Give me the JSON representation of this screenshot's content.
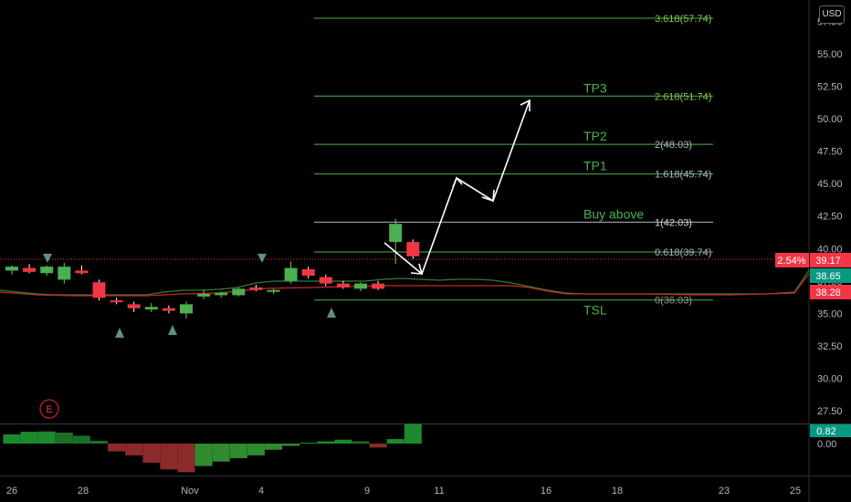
{
  "currency_button": "USD",
  "earnings_marker": "E",
  "price_badges": {
    "change_pct": "2.54%",
    "last_price": "39.17",
    "line_green": "38.65",
    "line_red": "38.28",
    "osc_value": "0.82"
  },
  "colors": {
    "up": "#4caf50",
    "down": "#f23645",
    "fib": "#4caf50",
    "fib_white": "#b2b5be",
    "background": "#000000",
    "badge_red": "#f23645",
    "badge_green": "#089981"
  },
  "chart_data": [
    {
      "type": "candlestick",
      "x_ticks": [
        "26",
        "28",
        "Nov",
        "4",
        "9",
        "11",
        "16",
        "18",
        "23",
        "25"
      ],
      "y_ticks": [
        "27.50",
        "30.00",
        "32.50",
        "35.00",
        "37.50",
        "40.00",
        "42.50",
        "45.00",
        "47.50",
        "50.00",
        "52.50",
        "55.00",
        "57.50"
      ],
      "ylim": [
        25.0,
        58.5
      ],
      "grid": false,
      "candles": [
        {
          "i": 0,
          "o": 38.3,
          "h": 38.7,
          "l": 38.0,
          "c": 38.6
        },
        {
          "i": 1,
          "o": 38.5,
          "h": 38.8,
          "l": 38.1,
          "c": 38.2
        },
        {
          "i": 2,
          "o": 38.1,
          "h": 38.7,
          "l": 37.9,
          "c": 38.6
        },
        {
          "i": 3,
          "o": 37.6,
          "h": 38.9,
          "l": 37.3,
          "c": 38.6
        },
        {
          "i": 4,
          "o": 38.3,
          "h": 38.7,
          "l": 38.0,
          "c": 38.1
        },
        {
          "i": 5,
          "o": 37.4,
          "h": 37.6,
          "l": 36.0,
          "c": 36.2
        },
        {
          "i": 6,
          "o": 36.0,
          "h": 36.2,
          "l": 35.7,
          "c": 35.9
        },
        {
          "i": 7,
          "o": 35.7,
          "h": 35.9,
          "l": 35.1,
          "c": 35.4
        },
        {
          "i": 8,
          "o": 35.3,
          "h": 35.8,
          "l": 35.1,
          "c": 35.5
        },
        {
          "i": 9,
          "o": 35.4,
          "h": 35.6,
          "l": 35.0,
          "c": 35.2
        },
        {
          "i": 10,
          "o": 35.0,
          "h": 35.9,
          "l": 34.6,
          "c": 35.7
        },
        {
          "i": 11,
          "o": 36.3,
          "h": 36.8,
          "l": 36.1,
          "c": 36.5
        },
        {
          "i": 12,
          "o": 36.4,
          "h": 36.7,
          "l": 36.2,
          "c": 36.6
        },
        {
          "i": 13,
          "o": 36.4,
          "h": 37.0,
          "l": 36.3,
          "c": 36.9
        },
        {
          "i": 14,
          "o": 37.0,
          "h": 37.2,
          "l": 36.7,
          "c": 36.8
        },
        {
          "i": 15,
          "o": 36.7,
          "h": 36.9,
          "l": 36.5,
          "c": 36.8
        },
        {
          "i": 16,
          "o": 37.5,
          "h": 39.0,
          "l": 37.3,
          "c": 38.5
        },
        {
          "i": 17,
          "o": 38.4,
          "h": 38.6,
          "l": 37.7,
          "c": 37.9
        },
        {
          "i": 18,
          "o": 37.8,
          "h": 38.0,
          "l": 37.1,
          "c": 37.3
        },
        {
          "i": 19,
          "o": 37.3,
          "h": 37.5,
          "l": 36.9,
          "c": 37.0
        },
        {
          "i": 20,
          "o": 36.9,
          "h": 37.4,
          "l": 36.7,
          "c": 37.3
        },
        {
          "i": 21,
          "o": 37.3,
          "h": 37.5,
          "l": 36.8,
          "c": 36.9
        },
        {
          "i": 22,
          "o": 40.5,
          "h": 42.3,
          "l": 38.8,
          "c": 41.9
        },
        {
          "i": 23,
          "o": 40.5,
          "h": 40.7,
          "l": 39.2,
          "c": 39.4
        }
      ],
      "fib_levels": [
        {
          "label": "3.618(57.74)",
          "value": 57.74,
          "tp": ""
        },
        {
          "label": "2.618(51.74)",
          "value": 51.74,
          "tp": "TP3"
        },
        {
          "label": "2(48.03)",
          "value": 48.03,
          "tp": "TP2"
        },
        {
          "label": "1.618(45.74)",
          "value": 45.74,
          "tp": "TP1"
        },
        {
          "label": "1(42.03)",
          "value": 42.03,
          "tp": "Buy above"
        },
        {
          "label": "0.618(39.74)",
          "value": 39.74,
          "tp": ""
        },
        {
          "label": "0(36.03)",
          "value": 36.03,
          "tp": "TSL"
        }
      ],
      "current_price": 39.17
    },
    {
      "type": "histogram",
      "values": [
        0.82,
        1.05,
        1.08,
        0.98,
        0.7,
        0.25,
        -0.7,
        -1.05,
        -1.7,
        -2.3,
        -2.55,
        -2.0,
        -1.6,
        -1.3,
        -1.05,
        -0.55,
        -0.2,
        0.08,
        0.2,
        0.35,
        0.2,
        -0.35,
        0.4,
        1.75
      ],
      "y_ticks": [
        "0.82",
        "0.00"
      ]
    }
  ]
}
